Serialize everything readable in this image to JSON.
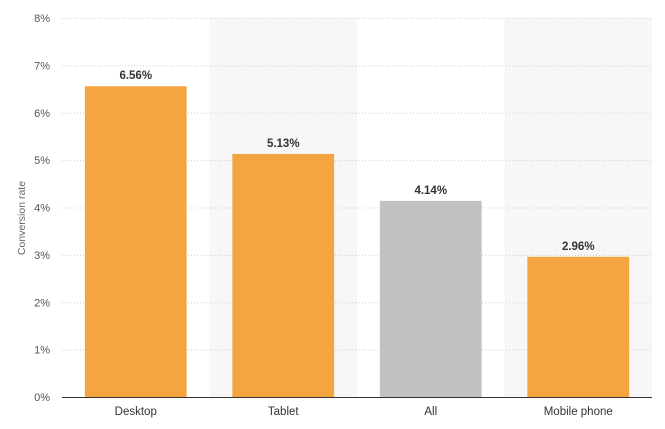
{
  "chart_data": {
    "type": "bar",
    "categories": [
      "Desktop",
      "Tablet",
      "All",
      "Mobile phone"
    ],
    "values": [
      6.56,
      5.13,
      4.14,
      2.96
    ],
    "data_labels": [
      "6.56%",
      "5.13%",
      "4.14%",
      "2.96%"
    ],
    "colors": [
      "#f4a540",
      "#f4a540",
      "#c2c2c2",
      "#f4a540"
    ],
    "band_color": "#f7f7f7",
    "ylabel": "Conversion rate",
    "ylim": [
      0,
      8
    ],
    "yticks": [
      0,
      1,
      2,
      3,
      4,
      5,
      6,
      7,
      8
    ],
    "ytick_labels": [
      "0%",
      "1%",
      "2%",
      "3%",
      "4%",
      "5%",
      "6%",
      "7%",
      "8%"
    ],
    "grid": true,
    "legend": "none"
  }
}
